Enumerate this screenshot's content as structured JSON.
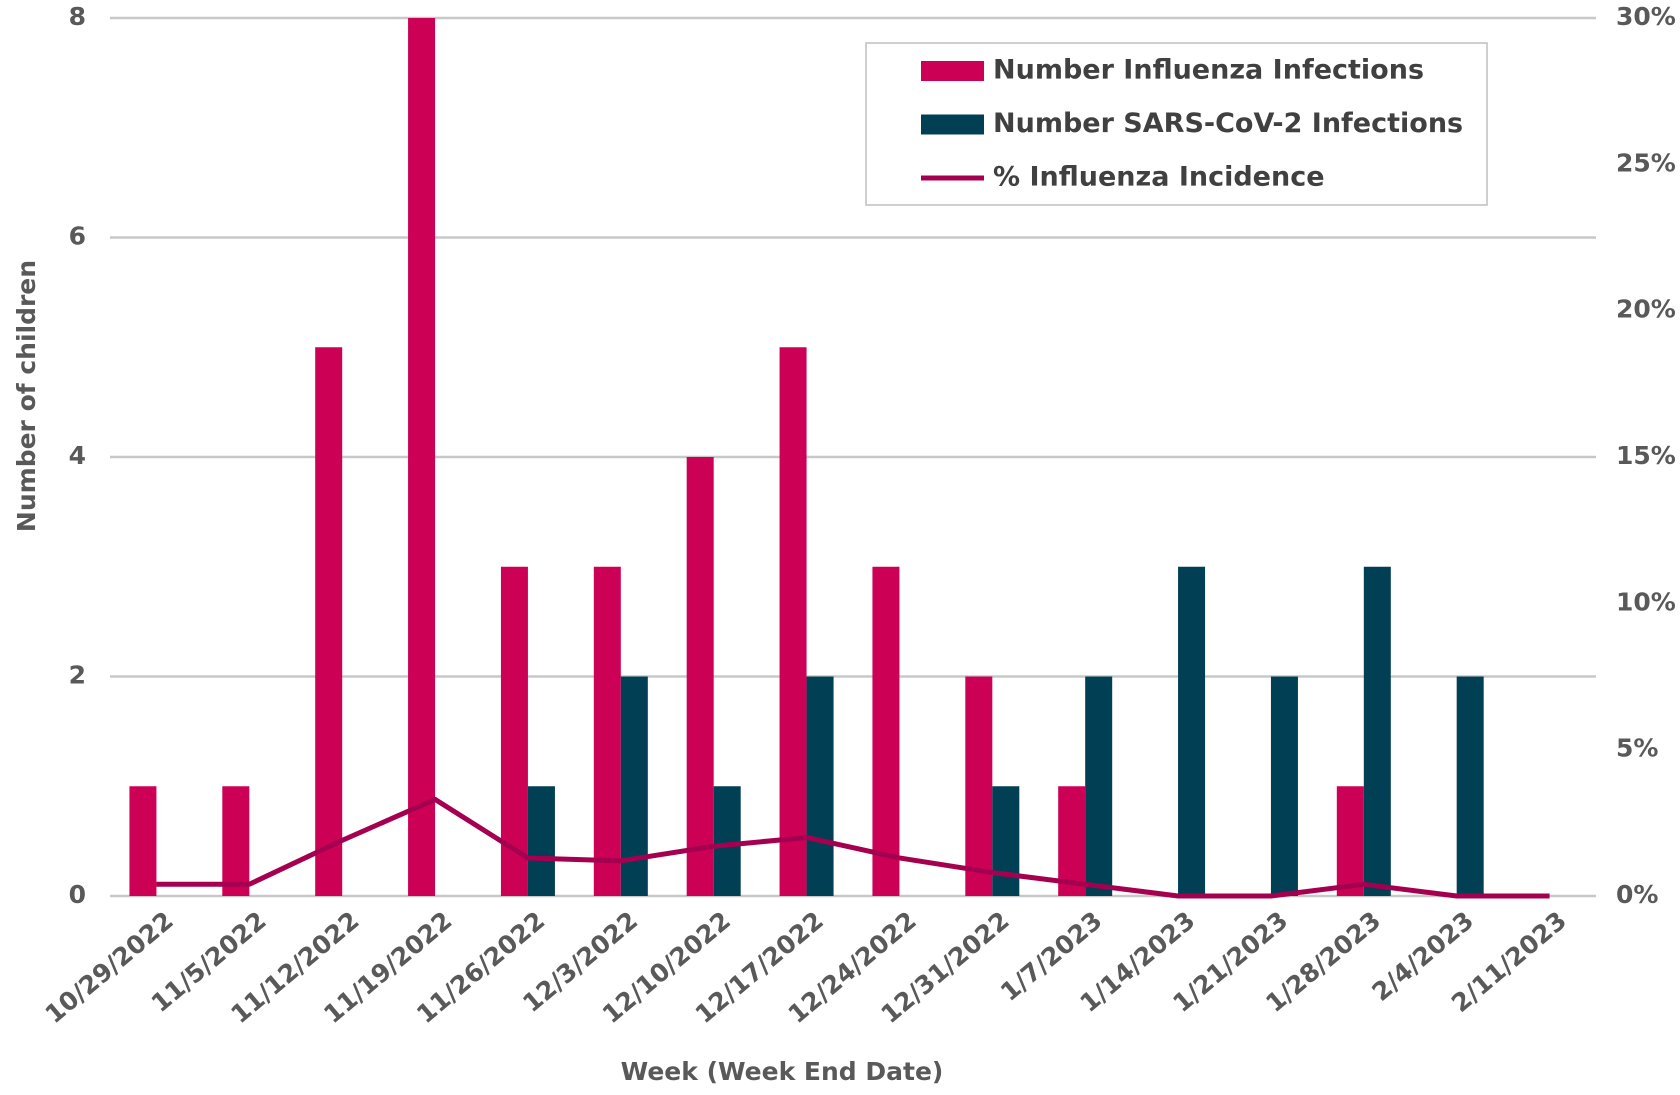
{
  "chart_data": {
    "type": "bar",
    "x_label": "Week (Week End Date)",
    "y_label": "Number of children",
    "categories": [
      "10/29/2022",
      "11/5/2022",
      "11/12/2022",
      "11/19/2022",
      "11/26/2022",
      "12/3/2022",
      "12/10/2022",
      "12/17/2022",
      "12/24/2022",
      "12/31/2022",
      "1/7/2023",
      "1/14/2023",
      "1/21/2023",
      "1/28/2023",
      "2/4/2023",
      "2/11/2023"
    ],
    "series": [
      {
        "name": "Number Influenza Infections",
        "type": "bar",
        "color": "#cc0055",
        "values": [
          1,
          1,
          5,
          8,
          3,
          3,
          4,
          5,
          3,
          2,
          1,
          0,
          0,
          1,
          0,
          0
        ]
      },
      {
        "name": "Number SARS-CoV-2 Infections",
        "type": "bar",
        "color": "#003f54",
        "values": [
          0,
          0,
          0,
          0,
          1,
          2,
          1,
          2,
          0,
          1,
          2,
          3,
          2,
          3,
          2,
          0
        ]
      },
      {
        "name": "% Influenza Incidence",
        "type": "line",
        "axis": "y2",
        "color": "#a50050",
        "values": [
          0.4,
          0.4,
          1.9,
          3.3,
          1.3,
          1.2,
          1.7,
          2.0,
          1.3,
          0.8,
          0.4,
          0,
          0,
          0.4,
          0,
          0
        ]
      }
    ],
    "ylim": [
      0,
      8
    ],
    "yticks": [
      0,
      2,
      4,
      6,
      8
    ],
    "y2lim": [
      0,
      30
    ],
    "y2ticks": [
      {
        "value": 0,
        "label": "0%"
      },
      {
        "value": 5,
        "label": "5%"
      },
      {
        "value": 10,
        "label": "10%"
      },
      {
        "value": 15,
        "label": "15%"
      },
      {
        "value": 20,
        "label": "20%"
      },
      {
        "value": 25,
        "label": "25%"
      },
      {
        "value": 30,
        "label": "30%"
      }
    ],
    "grid": true,
    "legend": "top-right"
  }
}
